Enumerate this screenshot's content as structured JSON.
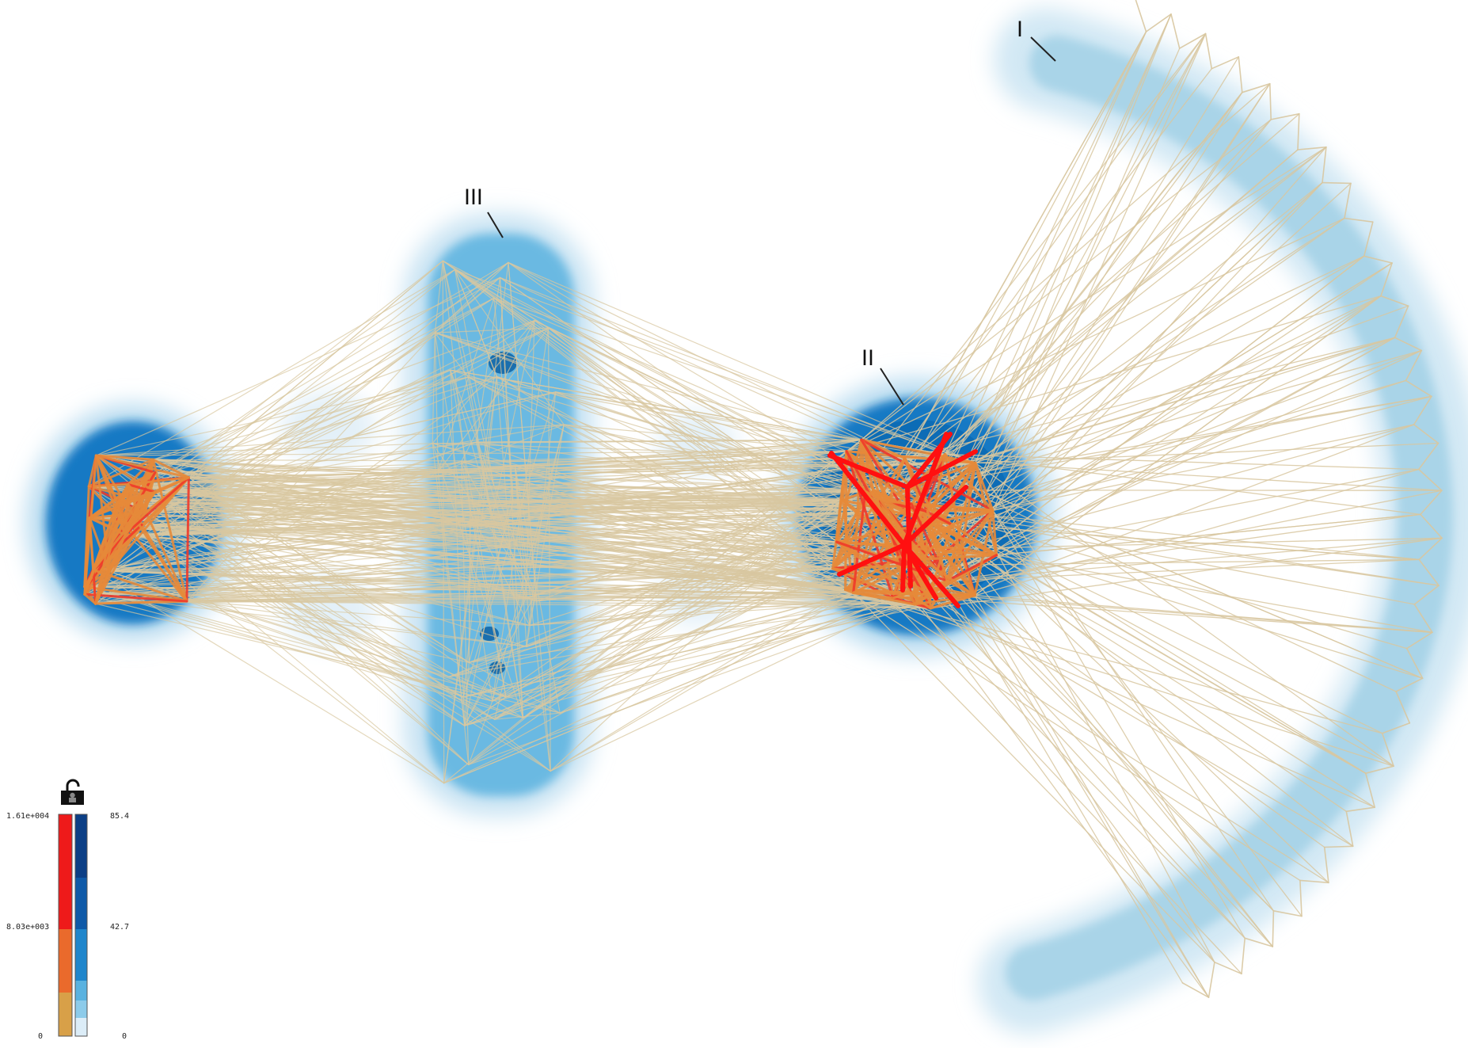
{
  "labels": {
    "cluster_1": "I",
    "cluster_2": "II",
    "cluster_3": "III"
  },
  "legend": {
    "edge_scale": {
      "max": "1.61e+004",
      "mid": "8.03e+003",
      "min": "0"
    },
    "density_scale": {
      "max": "85.4",
      "mid": "42.7",
      "min": "0"
    },
    "lock_icon": "unlocked-padlock-icon"
  },
  "colors": {
    "edge_light": "#d8c7a0",
    "edge_medium": "#e58a3a",
    "edge_strong": "#f03a2a",
    "edge_max": "#ff1010",
    "density_light": "#a9d4e8",
    "density_mid": "#5fb2dd",
    "density_dark": "#0a72be",
    "density_darkest": "#0b4f96"
  }
}
